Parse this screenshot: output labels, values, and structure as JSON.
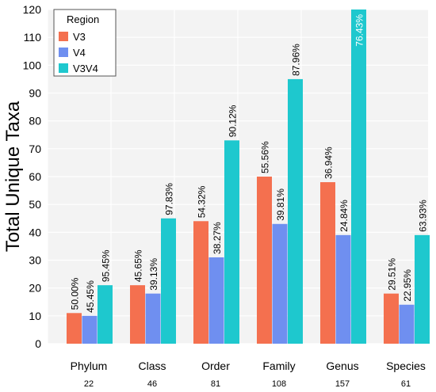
{
  "chart_data": {
    "type": "bar",
    "ylabel": "Total Unique Taxa",
    "ylim": [
      0,
      120
    ],
    "yticks": [
      0,
      10,
      20,
      30,
      40,
      50,
      60,
      70,
      80,
      90,
      100,
      110,
      120
    ],
    "categories": [
      "Phylum",
      "Class",
      "Order",
      "Family",
      "Genus",
      "Species"
    ],
    "category_totals": [
      "22",
      "46",
      "81",
      "108",
      "157",
      "61"
    ],
    "legend": {
      "title": "Region",
      "placement": "top-left"
    },
    "grid": true,
    "series": [
      {
        "name": "V3",
        "color": "#f4704f",
        "values": [
          11,
          21,
          44,
          60,
          58,
          18
        ],
        "labels": [
          "50.00%",
          "45.65%",
          "54.32%",
          "55.56%",
          "36.94%",
          "29.51%"
        ]
      },
      {
        "name": "V4",
        "color": "#6f8ff0",
        "values": [
          10,
          18,
          31,
          43,
          39,
          14
        ],
        "labels": [
          "45.45%",
          "39.13%",
          "38.27%",
          "39.81%",
          "24.84%",
          "22.95%"
        ]
      },
      {
        "name": "V3V4",
        "color": "#1ec8ce",
        "values": [
          21,
          45,
          73,
          95,
          120,
          39
        ],
        "labels": [
          "95.45%",
          "97.83%",
          "90.12%",
          "87.96%",
          "76.43%",
          "63.93%"
        ]
      }
    ]
  }
}
